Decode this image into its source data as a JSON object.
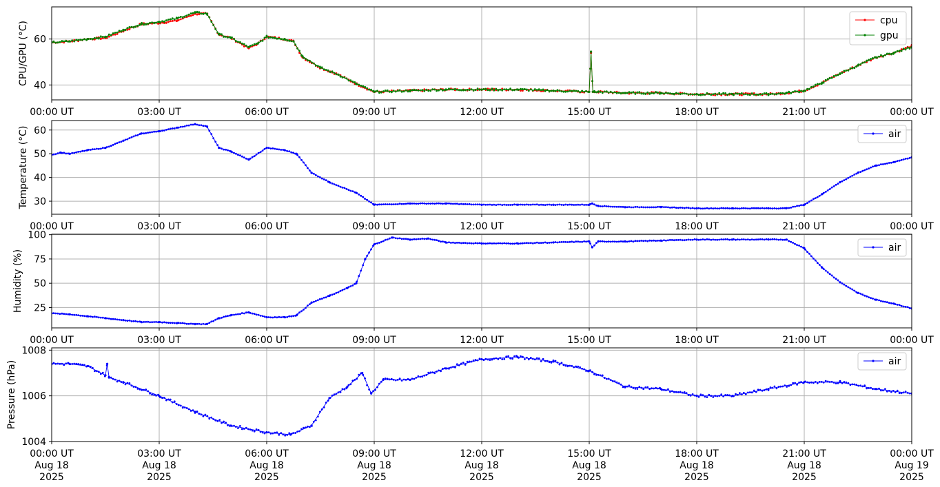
{
  "chart_data": [
    {
      "type": "line",
      "ylabel": "CPU/GPU (°C)",
      "xlim": [
        "2025-08-18T00:00",
        "2025-08-19T00:00"
      ],
      "ylim": [
        33.5,
        74
      ],
      "yticks": [
        40,
        60
      ],
      "grid": true,
      "legend": "upper right",
      "series": [
        {
          "name": "cpu",
          "color": "#ff0000",
          "x": [
            "2025-08-18T00:00",
            "2025-08-18T00:30",
            "2025-08-18T01:00",
            "2025-08-18T01:30",
            "2025-08-18T02:00",
            "2025-08-18T02:30",
            "2025-08-18T03:00",
            "2025-08-18T03:30",
            "2025-08-18T04:00",
            "2025-08-18T04:20",
            "2025-08-18T04:40",
            "2025-08-18T05:00",
            "2025-08-18T05:30",
            "2025-08-18T05:45",
            "2025-08-18T06:00",
            "2025-08-18T06:30",
            "2025-08-18T06:45",
            "2025-08-18T07:00",
            "2025-08-18T07:30",
            "2025-08-18T08:00",
            "2025-08-18T08:30",
            "2025-08-18T09:00",
            "2025-08-18T10:00",
            "2025-08-18T11:00",
            "2025-08-18T12:00",
            "2025-08-18T13:00",
            "2025-08-18T14:00",
            "2025-08-18T15:00",
            "2025-08-18T15:03",
            "2025-08-18T15:06",
            "2025-08-18T15:09",
            "2025-08-18T15:15",
            "2025-08-18T16:00",
            "2025-08-18T17:00",
            "2025-08-18T18:00",
            "2025-08-18T19:00",
            "2025-08-18T20:00",
            "2025-08-18T20:30",
            "2025-08-18T21:00",
            "2025-08-18T21:30",
            "2025-08-18T22:00",
            "2025-08-18T22:30",
            "2025-08-18T23:00",
            "2025-08-18T23:30",
            "2025-08-19T00:00"
          ],
          "values": [
            58.5,
            59,
            60,
            60.5,
            63.5,
            66.5,
            67,
            68,
            71,
            71,
            62,
            60.5,
            56,
            58,
            61,
            60,
            59,
            52,
            47.5,
            44.5,
            40.5,
            37,
            37.5,
            38,
            38,
            38,
            37.5,
            37,
            54,
            37,
            37,
            37,
            36.5,
            36.5,
            36,
            36,
            36,
            36.5,
            37.5,
            41,
            45,
            48.5,
            52,
            54,
            57
          ]
        },
        {
          "name": "gpu",
          "color": "#008000",
          "x": [
            "2025-08-18T00:00",
            "2025-08-18T00:30",
            "2025-08-18T01:00",
            "2025-08-18T01:30",
            "2025-08-18T02:00",
            "2025-08-18T02:30",
            "2025-08-18T03:00",
            "2025-08-18T03:30",
            "2025-08-18T04:00",
            "2025-08-18T04:20",
            "2025-08-18T04:40",
            "2025-08-18T05:00",
            "2025-08-18T05:30",
            "2025-08-18T05:45",
            "2025-08-18T06:00",
            "2025-08-18T06:30",
            "2025-08-18T06:45",
            "2025-08-18T07:00",
            "2025-08-18T07:30",
            "2025-08-18T08:00",
            "2025-08-18T08:30",
            "2025-08-18T09:00",
            "2025-08-18T10:00",
            "2025-08-18T11:00",
            "2025-08-18T12:00",
            "2025-08-18T13:00",
            "2025-08-18T14:00",
            "2025-08-18T15:00",
            "2025-08-18T15:03",
            "2025-08-18T15:06",
            "2025-08-18T15:09",
            "2025-08-18T15:15",
            "2025-08-18T16:00",
            "2025-08-18T17:00",
            "2025-08-18T18:00",
            "2025-08-18T19:00",
            "2025-08-18T20:00",
            "2025-08-18T20:30",
            "2025-08-18T21:00",
            "2025-08-18T21:30",
            "2025-08-18T22:00",
            "2025-08-18T22:30",
            "2025-08-18T23:00",
            "2025-08-18T23:30",
            "2025-08-19T00:00"
          ],
          "values": [
            58.5,
            59,
            60,
            61,
            64,
            66.5,
            67.5,
            69,
            71.5,
            71,
            62,
            60.5,
            56.5,
            58,
            61,
            60,
            59,
            52.5,
            47.5,
            44.5,
            40.5,
            37,
            37.5,
            38,
            38,
            38,
            37.5,
            37,
            54.5,
            37,
            37,
            37,
            36.5,
            36.5,
            36,
            36,
            36,
            36.5,
            37.5,
            41,
            45,
            48.5,
            52,
            54,
            56.5
          ]
        }
      ]
    },
    {
      "type": "line",
      "ylabel": "Temperature (°C)",
      "xlim": [
        "2025-08-18T00:00",
        "2025-08-19T00:00"
      ],
      "ylim": [
        24.5,
        64
      ],
      "yticks": [
        30,
        40,
        50,
        60
      ],
      "grid": true,
      "legend": "upper right",
      "series": [
        {
          "name": "air",
          "color": "#0000ff",
          "x": [
            "2025-08-18T00:00",
            "2025-08-18T00:15",
            "2025-08-18T00:30",
            "2025-08-18T01:00",
            "2025-08-18T01:30",
            "2025-08-18T02:00",
            "2025-08-18T02:30",
            "2025-08-18T03:00",
            "2025-08-18T03:30",
            "2025-08-18T04:00",
            "2025-08-18T04:20",
            "2025-08-18T04:40",
            "2025-08-18T05:00",
            "2025-08-18T05:30",
            "2025-08-18T06:00",
            "2025-08-18T06:30",
            "2025-08-18T06:50",
            "2025-08-18T07:15",
            "2025-08-18T07:45",
            "2025-08-18T08:30",
            "2025-08-18T09:00",
            "2025-08-18T10:00",
            "2025-08-18T11:00",
            "2025-08-18T12:00",
            "2025-08-18T13:00",
            "2025-08-18T14:00",
            "2025-08-18T15:00",
            "2025-08-18T15:05",
            "2025-08-18T15:15",
            "2025-08-18T16:00",
            "2025-08-18T17:00",
            "2025-08-18T18:00",
            "2025-08-18T19:00",
            "2025-08-18T20:00",
            "2025-08-18T20:30",
            "2025-08-18T21:00",
            "2025-08-18T21:30",
            "2025-08-18T22:00",
            "2025-08-18T22:30",
            "2025-08-18T23:00",
            "2025-08-18T23:30",
            "2025-08-19T00:00"
          ],
          "values": [
            49.5,
            50.5,
            50,
            51.5,
            52.5,
            55.5,
            58.5,
            59.5,
            61,
            62.5,
            61.5,
            52.5,
            51,
            47.5,
            52.5,
            51.5,
            50,
            42,
            38,
            33.5,
            28.5,
            29,
            29,
            28.5,
            28.5,
            28.5,
            28.5,
            29,
            28,
            27.5,
            27.5,
            27,
            27,
            27,
            27,
            28.5,
            33,
            38,
            42,
            45,
            46.5,
            48.5
          ]
        }
      ]
    },
    {
      "type": "line",
      "ylabel": "Humidity (%)",
      "xlim": [
        "2025-08-18T00:00",
        "2025-08-19T00:00"
      ],
      "ylim": [
        4,
        100.5
      ],
      "yticks": [
        25,
        50,
        75,
        100
      ],
      "grid": true,
      "legend": "upper right",
      "series": [
        {
          "name": "air",
          "color": "#0000ff",
          "x": [
            "2025-08-18T00:00",
            "2025-08-18T00:30",
            "2025-08-18T01:00",
            "2025-08-18T01:30",
            "2025-08-18T02:00",
            "2025-08-18T02:30",
            "2025-08-18T03:00",
            "2025-08-18T03:30",
            "2025-08-18T04:00",
            "2025-08-18T04:20",
            "2025-08-18T04:40",
            "2025-08-18T05:00",
            "2025-08-18T05:30",
            "2025-08-18T06:00",
            "2025-08-18T06:30",
            "2025-08-18T06:50",
            "2025-08-18T07:15",
            "2025-08-18T07:45",
            "2025-08-18T08:15",
            "2025-08-18T08:30",
            "2025-08-18T08:45",
            "2025-08-18T09:00",
            "2025-08-18T09:30",
            "2025-08-18T10:00",
            "2025-08-18T10:30",
            "2025-08-18T11:00",
            "2025-08-18T12:00",
            "2025-08-18T13:00",
            "2025-08-18T14:00",
            "2025-08-18T15:00",
            "2025-08-18T15:05",
            "2025-08-18T15:15",
            "2025-08-18T16:00",
            "2025-08-18T17:00",
            "2025-08-18T18:00",
            "2025-08-18T19:00",
            "2025-08-18T20:00",
            "2025-08-18T20:30",
            "2025-08-18T21:00",
            "2025-08-18T21:30",
            "2025-08-18T22:00",
            "2025-08-18T22:30",
            "2025-08-18T23:00",
            "2025-08-18T23:30",
            "2025-08-19T00:00"
          ],
          "values": [
            19,
            18,
            16,
            14,
            12,
            10,
            10,
            9,
            8,
            8,
            14,
            17,
            20,
            15,
            15,
            17,
            30,
            37,
            45,
            50,
            75,
            90,
            97,
            95,
            96,
            92,
            91,
            91,
            92,
            93,
            87,
            93,
            93,
            94,
            95,
            95,
            95,
            95,
            86,
            66,
            51,
            40,
            33,
            29,
            24
          ]
        }
      ]
    },
    {
      "type": "line",
      "ylabel": "Pressure (hPa)",
      "xlim": [
        "2025-08-18T00:00",
        "2025-08-19T00:00"
      ],
      "ylim": [
        1004,
        1008.1
      ],
      "yticks": [
        1004,
        1006,
        1008
      ],
      "grid": true,
      "legend": "upper right",
      "series": [
        {
          "name": "air",
          "color": "#0000ff",
          "x": [
            "2025-08-18T00:00",
            "2025-08-18T00:30",
            "2025-08-18T01:00",
            "2025-08-18T01:30",
            "2025-08-18T01:33",
            "2025-08-18T01:36",
            "2025-08-18T02:00",
            "2025-08-18T03:00",
            "2025-08-18T04:00",
            "2025-08-18T05:00",
            "2025-08-18T06:00",
            "2025-08-18T06:40",
            "2025-08-18T07:15",
            "2025-08-18T07:45",
            "2025-08-18T08:15",
            "2025-08-18T08:40",
            "2025-08-18T08:55",
            "2025-08-18T09:15",
            "2025-08-18T10:00",
            "2025-08-18T11:00",
            "2025-08-18T12:00",
            "2025-08-18T13:00",
            "2025-08-18T14:00",
            "2025-08-18T15:00",
            "2025-08-18T16:00",
            "2025-08-18T17:00",
            "2025-08-18T18:00",
            "2025-08-18T19:00",
            "2025-08-18T20:00",
            "2025-08-18T21:00",
            "2025-08-18T22:00",
            "2025-08-18T23:00",
            "2025-08-19T00:00"
          ],
          "values": [
            1007.4,
            1007.4,
            1007.3,
            1006.9,
            1007.4,
            1006.8,
            1006.6,
            1006,
            1005.3,
            1004.7,
            1004.4,
            1004.3,
            1004.7,
            1005.9,
            1006.4,
            1007,
            1006.1,
            1006.7,
            1006.7,
            1007.2,
            1007.6,
            1007.7,
            1007.5,
            1007.1,
            1006.4,
            1006.3,
            1006,
            1006,
            1006.3,
            1006.6,
            1006.6,
            1006.3,
            1006.1
          ]
        }
      ]
    }
  ],
  "x_tick_labels": [
    "00:00 UT",
    "03:00 UT",
    "06:00 UT",
    "09:00 UT",
    "12:00 UT",
    "15:00 UT",
    "18:00 UT",
    "21:00 UT",
    "00:00 UT"
  ],
  "x_date_labels": [
    "Aug 18",
    "Aug 18",
    "Aug 18",
    "Aug 18",
    "Aug 18",
    "Aug 18",
    "Aug 18",
    "Aug 18",
    "Aug 19"
  ],
  "x_year_labels": [
    "2025",
    "2025",
    "2025",
    "2025",
    "2025",
    "2025",
    "2025",
    "2025",
    "2025"
  ]
}
